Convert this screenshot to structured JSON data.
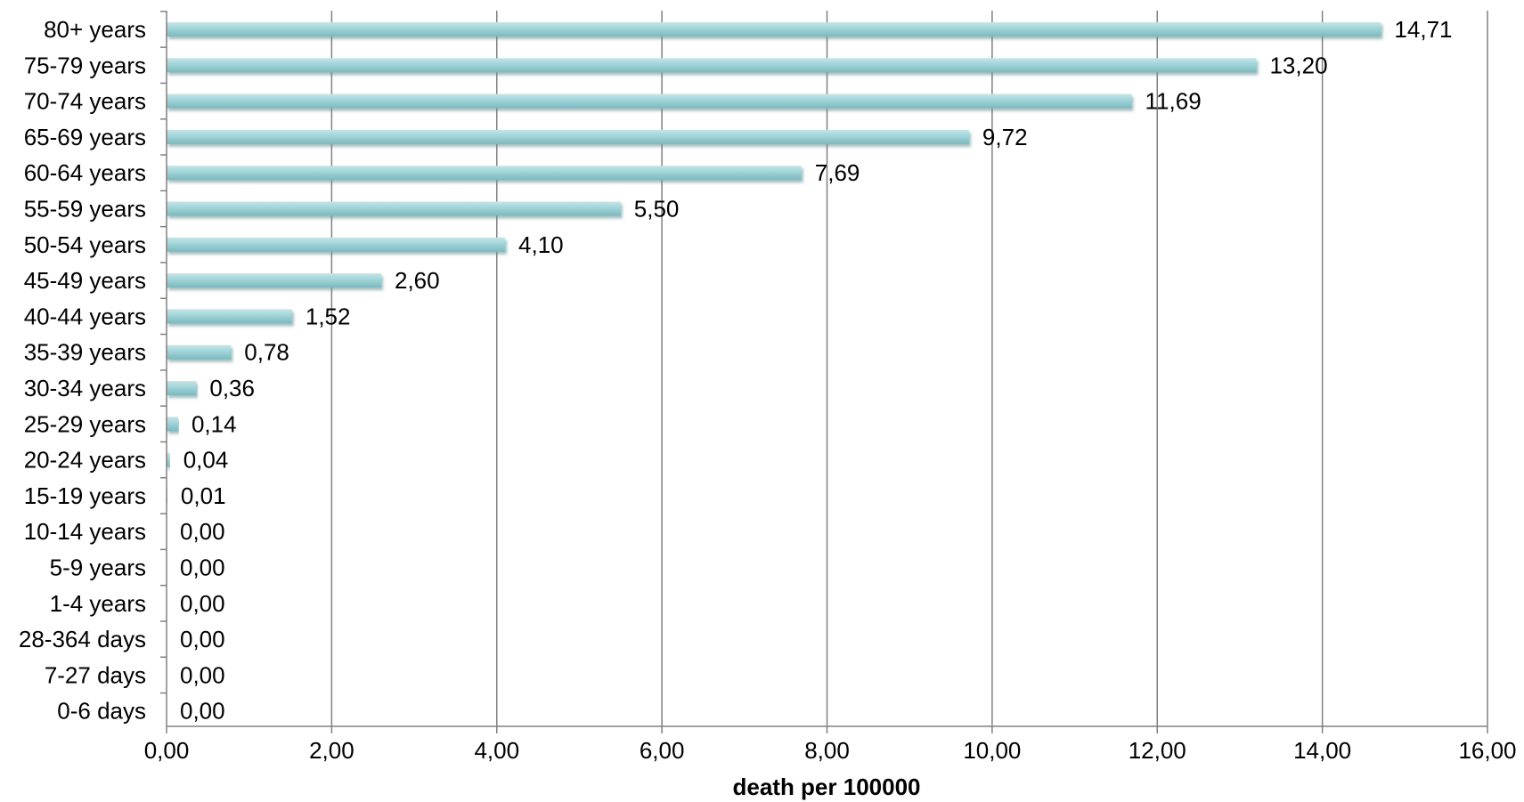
{
  "chart_data": {
    "type": "bar",
    "orientation": "horizontal",
    "categories": [
      "80+ years",
      "75-79 years",
      "70-74 years",
      "65-69 years",
      "60-64 years",
      "55-59 years",
      "50-54 years",
      "45-49 years",
      "40-44 years",
      "35-39 years",
      "30-34 years",
      "25-29 years",
      "20-24 years",
      "15-19 years",
      "10-14 years",
      "5-9 years",
      "1-4 years",
      "28-364 days",
      "7-27 days",
      "0-6 days"
    ],
    "values": [
      14.71,
      13.2,
      11.69,
      9.72,
      7.69,
      5.5,
      4.1,
      2.6,
      1.52,
      0.78,
      0.36,
      0.14,
      0.04,
      0.01,
      0.0,
      0.0,
      0.0,
      0.0,
      0.0,
      0.0
    ],
    "value_labels": [
      "14,71",
      "13,20",
      "11,69",
      "9,72",
      "7,69",
      "5,50",
      "4,10",
      "2,60",
      "1,52",
      "0,78",
      "0,36",
      "0,14",
      "0,04",
      "0,01",
      "0,00",
      "0,00",
      "0,00",
      "0,00",
      "0,00",
      "0,00"
    ],
    "xlim": [
      0,
      16
    ],
    "x_ticks": [
      0,
      2,
      4,
      6,
      8,
      10,
      12,
      14,
      16
    ],
    "x_tick_labels": [
      "0,00",
      "2,00",
      "4,00",
      "6,00",
      "8,00",
      "10,00",
      "12,00",
      "14,00",
      "16,00"
    ],
    "xlabel": "death per  100000",
    "ylabel": "",
    "title": "",
    "grid": "vertical",
    "bar_color": "#93CDD1",
    "bar_shadow_color": "#7FA7AB",
    "legend": "none"
  }
}
